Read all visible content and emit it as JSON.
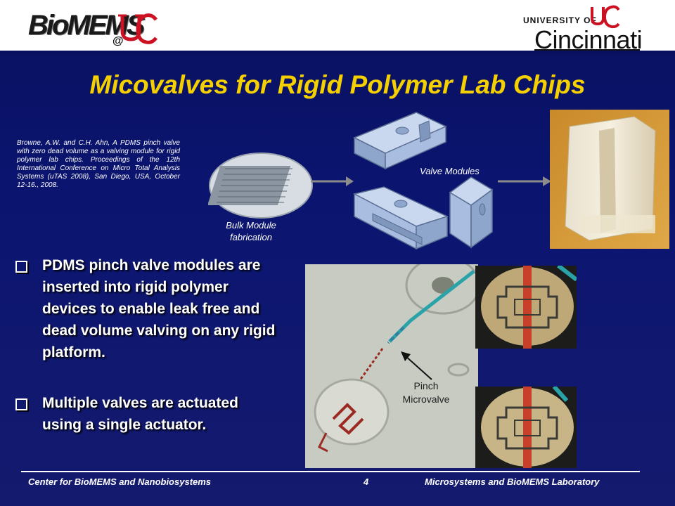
{
  "header": {
    "biomems_logo_text": "BioMEMS",
    "at_sign": "@",
    "university_of": "UNIVERSITY OF",
    "university_name": "Cincinnati"
  },
  "slide": {
    "title": "Micovalves for Rigid Polymer Lab Chips",
    "citation": "Browne, A.W. and C.H. Ahn, A PDMS pinch valve with zero dead volume as a valving module for rigid polymer lab chips. Proceedings of the 12th International Conference on Micro Total Analysis Systems (uTAS 2008), San Diego, USA, October 12-16., 2008.",
    "figure_labels": {
      "bulk_module": "Bulk Module fabrication",
      "valve_modules": "Valve Modules",
      "pinch_microvalve": "Pinch Microvalve"
    },
    "bullets": [
      "PDMS pinch valve modules are inserted into rigid polymer devices to enable leak free and dead volume  valving on any rigid platform.",
      "Multiple valves are actuated using a single actuator."
    ]
  },
  "footer": {
    "left": "Center for BioMEMS and Nanobiosystems",
    "page_number": "4",
    "right": "Microsystems and BioMEMS Laboratory"
  },
  "colors": {
    "background": "#0b1570",
    "title": "#f5d000",
    "text": "#ffffff",
    "uc_red": "#cc1122"
  }
}
